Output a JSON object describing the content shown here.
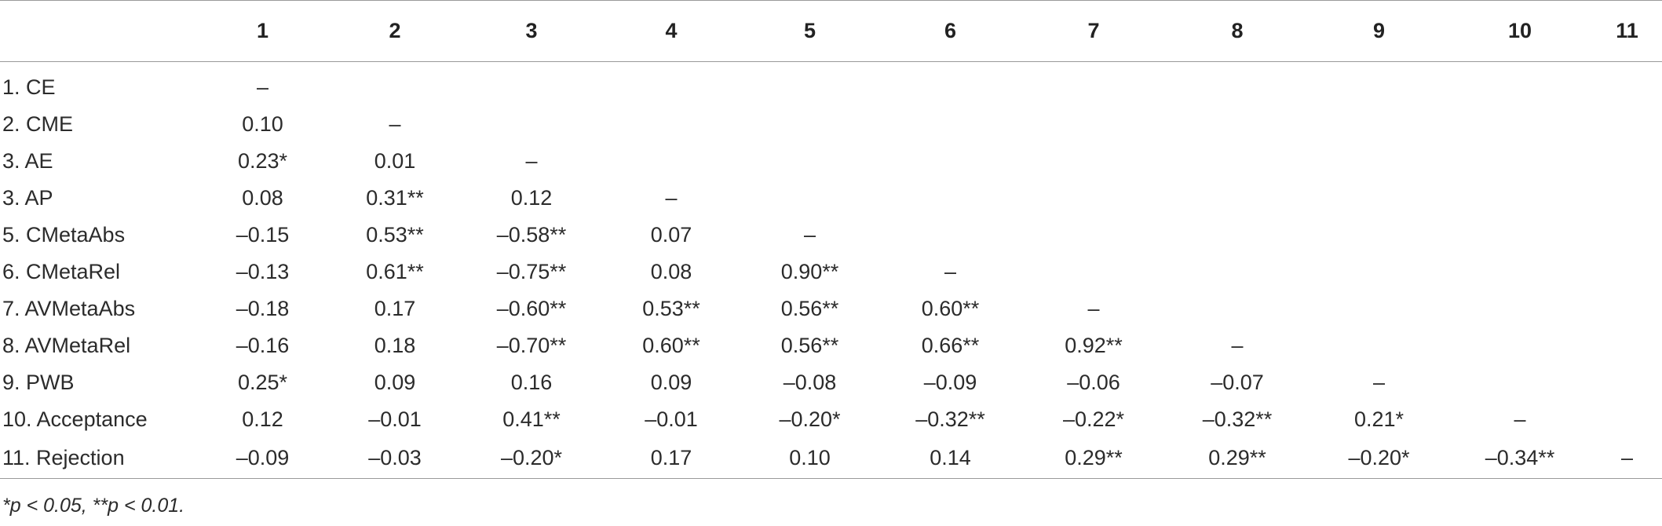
{
  "table": {
    "header": [
      "",
      "1",
      "2",
      "3",
      "4",
      "5",
      "6",
      "7",
      "8",
      "9",
      "10",
      "11"
    ],
    "rows": [
      {
        "label": "1. CE",
        "cells": [
          "–",
          "",
          "",
          "",
          "",
          "",
          "",
          "",
          "",
          "",
          ""
        ]
      },
      {
        "label": "2. CME",
        "cells": [
          "0.10",
          "–",
          "",
          "",
          "",
          "",
          "",
          "",
          "",
          "",
          ""
        ]
      },
      {
        "label": "3. AE",
        "cells": [
          "0.23*",
          "0.01",
          "–",
          "",
          "",
          "",
          "",
          "",
          "",
          "",
          ""
        ]
      },
      {
        "label": "3. AP",
        "cells": [
          "0.08",
          "0.31**",
          "0.12",
          "–",
          "",
          "",
          "",
          "",
          "",
          "",
          ""
        ]
      },
      {
        "label": "5. CMetaAbs",
        "cells": [
          "–0.15",
          "0.53**",
          "–0.58**",
          "0.07",
          "–",
          "",
          "",
          "",
          "",
          "",
          ""
        ]
      },
      {
        "label": "6. CMetaRel",
        "cells": [
          "–0.13",
          "0.61**",
          "–0.75**",
          "0.08",
          "0.90**",
          "–",
          "",
          "",
          "",
          "",
          ""
        ]
      },
      {
        "label": "7. AVMetaAbs",
        "cells": [
          "–0.18",
          "0.17",
          "–0.60**",
          "0.53**",
          "0.56**",
          "0.60**",
          "–",
          "",
          "",
          "",
          ""
        ]
      },
      {
        "label": "8. AVMetaRel",
        "cells": [
          "–0.16",
          "0.18",
          "–0.70**",
          "0.60**",
          "0.56**",
          "0.66**",
          "0.92**",
          "–",
          "",
          "",
          ""
        ]
      },
      {
        "label": "9. PWB",
        "cells": [
          "0.25*",
          "0.09",
          "0.16",
          "0.09",
          "–0.08",
          "–0.09",
          "–0.06",
          "–0.07",
          "–",
          "",
          ""
        ]
      },
      {
        "label": "10. Acceptance",
        "cells": [
          "0.12",
          "–0.01",
          "0.41**",
          "–0.01",
          "–0.20*",
          "–0.32**",
          "–0.22*",
          "–0.32**",
          "0.21*",
          "–",
          ""
        ]
      },
      {
        "label": "11. Rejection",
        "cells": [
          "–0.09",
          "–0.03",
          "–0.20*",
          "0.17",
          "0.10",
          "0.14",
          "0.29**",
          "0.29**",
          "–0.20*",
          "–0.34**",
          "–"
        ]
      }
    ]
  },
  "footnote": "*p < 0.05, **p < 0.01."
}
